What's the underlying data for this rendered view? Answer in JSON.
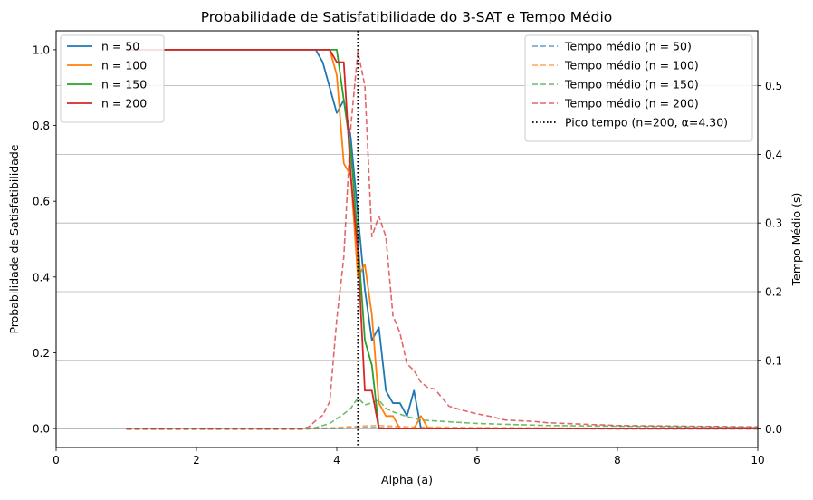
{
  "chart_data": {
    "type": "line",
    "title": "Probabilidade de Satisfatibilidade do 3-SAT e Tempo Médio",
    "xlabel": "Alpha (a)",
    "ylabel": "Probabilidade de Satisfatibilidade",
    "ylabel_right": "Tempo Médio (s)",
    "xlim": [
      0,
      10
    ],
    "ylim": [
      -0.05,
      1.05
    ],
    "ylim_right": [
      -0.027,
      0.58
    ],
    "xticks": [
      "0",
      "2",
      "4",
      "6",
      "8",
      "10"
    ],
    "xtick_values": [
      0,
      2,
      4,
      6,
      8,
      10
    ],
    "yticks": [
      "0.0",
      "0.2",
      "0.4",
      "0.6",
      "0.8",
      "1.0"
    ],
    "ytick_values": [
      0,
      0.2,
      0.4,
      0.6,
      0.8,
      1.0
    ],
    "yticks_right": [
      "0.0",
      "0.1",
      "0.2",
      "0.3",
      "0.4",
      "0.5"
    ],
    "ytick_values_right": [
      0,
      0.1,
      0.2,
      0.3,
      0.4,
      0.5
    ],
    "grid": "horizontal lines at right-axis ticks",
    "legend_left_placement": "top-left",
    "legend_right_placement": "top-right",
    "series": [
      {
        "name": "n = 50",
        "axis": "left",
        "style": "solid",
        "color": "#1f77b4",
        "x": [
          1.0,
          3.7,
          3.8,
          3.9,
          4.0,
          4.1,
          4.2,
          4.3,
          4.4,
          4.5,
          4.6,
          4.7,
          4.8,
          4.9,
          5.0,
          5.1,
          5.2,
          5.3,
          10.0
        ],
        "y": [
          1.0,
          1.0,
          0.967,
          0.9,
          0.833,
          0.867,
          0.767,
          0.567,
          0.367,
          0.233,
          0.267,
          0.1,
          0.067,
          0.067,
          0.033,
          0.1,
          0.0,
          0.0,
          0.0
        ]
      },
      {
        "name": "n = 100",
        "axis": "left",
        "style": "solid",
        "color": "#ff7f0e",
        "x": [
          1.0,
          3.8,
          3.9,
          4.0,
          4.1,
          4.2,
          4.3,
          4.4,
          4.5,
          4.6,
          4.7,
          4.8,
          4.9,
          5.0,
          5.1,
          5.2,
          5.3,
          10.0
        ],
        "y": [
          1.0,
          1.0,
          1.0,
          0.933,
          0.7,
          0.667,
          0.4,
          0.433,
          0.3,
          0.067,
          0.033,
          0.033,
          0.0,
          0.0,
          0.0,
          0.033,
          0.0,
          0.0
        ]
      },
      {
        "name": "n = 150",
        "axis": "left",
        "style": "solid",
        "color": "#2ca02c",
        "x": [
          1.0,
          3.9,
          4.0,
          4.1,
          4.2,
          4.3,
          4.4,
          4.5,
          4.6,
          4.7,
          10.0
        ],
        "y": [
          1.0,
          1.0,
          1.0,
          0.867,
          0.733,
          0.5,
          0.233,
          0.167,
          0.0,
          0.0,
          0.0
        ]
      },
      {
        "name": "n = 200",
        "axis": "left",
        "style": "solid",
        "color": "#d62728",
        "x": [
          1.0,
          3.9,
          4.0,
          4.1,
          4.2,
          4.3,
          4.4,
          4.5,
          4.6,
          10.0
        ],
        "y": [
          1.0,
          1.0,
          0.967,
          0.967,
          0.667,
          0.467,
          0.1,
          0.1,
          0.0,
          0.0
        ]
      },
      {
        "name": "Tempo médio (n = 50)",
        "axis": "right",
        "style": "dashed",
        "color": "#1f77b4",
        "x": [
          1.0,
          3.5,
          4.0,
          4.3,
          4.6,
          5.0,
          6.0,
          8.0,
          10.0
        ],
        "y": [
          0.0,
          0.0,
          0.001,
          0.002,
          0.002,
          0.001,
          0.001,
          0.0,
          0.0
        ]
      },
      {
        "name": "Tempo médio (n = 100)",
        "axis": "right",
        "style": "dashed",
        "color": "#ff7f0e",
        "x": [
          1.0,
          3.5,
          4.0,
          4.3,
          4.6,
          5.0,
          6.0,
          8.0,
          10.0
        ],
        "y": [
          0.0,
          0.0,
          0.002,
          0.004,
          0.005,
          0.003,
          0.002,
          0.001,
          0.001
        ]
      },
      {
        "name": "Tempo médio (n = 150)",
        "axis": "right",
        "style": "dashed",
        "color": "#2ca02c",
        "x": [
          1.0,
          3.5,
          3.7,
          3.9,
          4.0,
          4.1,
          4.2,
          4.3,
          4.4,
          4.5,
          4.6,
          4.7,
          4.8,
          5.0,
          5.2,
          5.5,
          6.0,
          7.0,
          8.0,
          9.0,
          10.0
        ],
        "y": [
          0.0,
          0.0,
          0.002,
          0.008,
          0.015,
          0.022,
          0.03,
          0.045,
          0.035,
          0.038,
          0.042,
          0.03,
          0.025,
          0.018,
          0.013,
          0.011,
          0.008,
          0.005,
          0.004,
          0.003,
          0.002
        ]
      },
      {
        "name": "Tempo médio (n = 200)",
        "axis": "right",
        "style": "dashed",
        "color": "#d62728",
        "x": [
          1.0,
          3.5,
          3.6,
          3.7,
          3.8,
          3.9,
          4.0,
          4.1,
          4.2,
          4.3,
          4.4,
          4.5,
          4.6,
          4.7,
          4.8,
          4.9,
          5.0,
          5.1,
          5.2,
          5.3,
          5.4,
          5.5,
          5.6,
          5.8,
          6.0,
          6.2,
          6.4,
          6.6,
          6.8,
          7.0,
          7.5,
          8.0,
          9.0,
          10.0
        ],
        "y": [
          0.0,
          0.0,
          0.003,
          0.012,
          0.02,
          0.04,
          0.16,
          0.25,
          0.44,
          0.55,
          0.5,
          0.28,
          0.31,
          0.28,
          0.165,
          0.14,
          0.095,
          0.085,
          0.068,
          0.06,
          0.058,
          0.045,
          0.033,
          0.027,
          0.022,
          0.018,
          0.013,
          0.012,
          0.011,
          0.009,
          0.007,
          0.005,
          0.004,
          0.003
        ]
      }
    ],
    "annotations": [
      {
        "name": "Pico tempo (n=200, α=4.30)",
        "type": "vline",
        "style": "dotted",
        "color": "#000000",
        "x": 4.3
      }
    ]
  }
}
